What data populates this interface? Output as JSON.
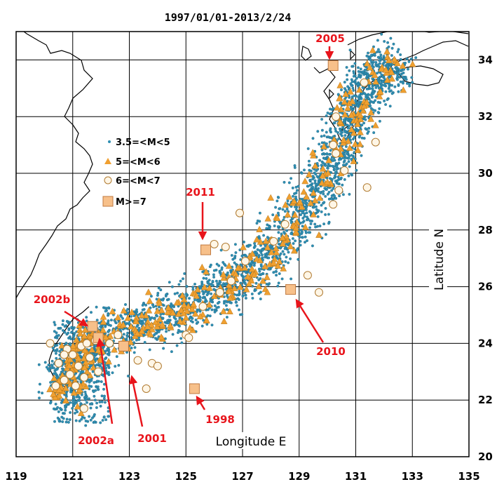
{
  "title": "1997/01/01-2013/2/24",
  "axes": {
    "x_label": "Longitude E",
    "y_label": "Latitude N",
    "x_ticks": [
      "119",
      "121",
      "123",
      "125",
      "127",
      "129",
      "131",
      "133",
      "135"
    ],
    "y_ticks": [
      "34",
      "32",
      "30",
      "28",
      "26",
      "24",
      "22",
      "20"
    ],
    "xlim": [
      119,
      135
    ],
    "ylim": [
      20,
      35
    ]
  },
  "legend": [
    {
      "label": "3.5=<M<5",
      "symbol": "small-dot"
    },
    {
      "label": "5=<M<6",
      "symbol": "triangle"
    },
    {
      "label": "6=<M<7",
      "symbol": "circle"
    },
    {
      "label": "M>=7",
      "symbol": "square"
    }
  ],
  "colors": {
    "small_dot": "#2f8fb3",
    "triangle": "#f0a030",
    "circle_fill": "#fff6e6",
    "circle_stroke": "#b07a30",
    "square_fill": "#f7c08a",
    "square_stroke": "#c07a40",
    "arrow": "#e8141b",
    "coast": "#000000",
    "grid": "#000000"
  },
  "events": [
    {
      "label": "2005",
      "lon": 130.2,
      "lat": 33.8
    },
    {
      "label": "2011",
      "lon": 125.7,
      "lat": 27.3
    },
    {
      "label": "2010",
      "lon": 128.7,
      "lat": 25.9
    },
    {
      "label": "2002b",
      "lon": 121.7,
      "lat": 24.6
    },
    {
      "label": "2002a",
      "lon": 121.9,
      "lat": 24.2
    },
    {
      "label": "2001",
      "lon": 122.8,
      "lat": 23.9
    },
    {
      "label": "1998",
      "lon": 125.3,
      "lat": 22.4
    }
  ]
}
